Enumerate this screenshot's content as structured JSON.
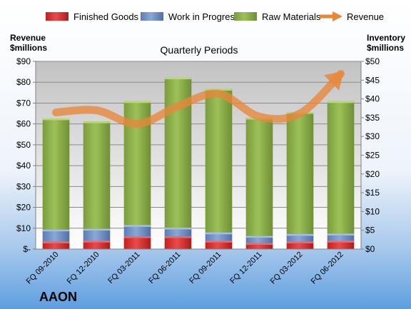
{
  "chart_data": {
    "type": "bar",
    "title": "Quarterly Periods",
    "company": "AAON",
    "left_axis_label_line1": "Revenue",
    "left_axis_label_line2": "$millions",
    "right_axis_label_line1": "Inventory",
    "right_axis_label_line2": "$millions",
    "categories": [
      "FQ 09-2010",
      "FQ 12-2010",
      "FQ 03-2011",
      "FQ 06-2011",
      "FQ 09-2011",
      "FQ 12-2011",
      "FQ 03-2012",
      "FQ 06-2012"
    ],
    "legend": [
      "Finished Goods",
      "Work in Progress",
      "Raw Materials",
      "Revenue"
    ],
    "legend_position": "top",
    "grid": true,
    "left_axis": {
      "ylim": [
        0,
        90
      ],
      "ticks": [
        0,
        10,
        20,
        30,
        40,
        50,
        60,
        70,
        80,
        90
      ],
      "tick_labels": [
        "$-",
        "$10",
        "$20",
        "$30",
        "$40",
        "$50",
        "$60",
        "$70",
        "$80",
        "$90"
      ]
    },
    "right_axis": {
      "ylim": [
        0,
        50
      ],
      "ticks": [
        0,
        5,
        10,
        15,
        20,
        25,
        30,
        35,
        40,
        45,
        50
      ],
      "tick_labels": [
        "$0",
        "$5",
        "$10",
        "$15",
        "$20",
        "$25",
        "$30",
        "$35",
        "$40",
        "$45",
        "$50"
      ]
    },
    "series": [
      {
        "name": "Finished Goods",
        "axis": "right",
        "kind": "stacked-bar",
        "color": "#d42a2a",
        "values": [
          2.0,
          2.2,
          3.4,
          3.4,
          2.2,
          1.6,
          2.0,
          2.2
        ]
      },
      {
        "name": "Work in Progress",
        "axis": "right",
        "kind": "stacked-bar",
        "color": "#6f8fc4",
        "values": [
          3.2,
          3.2,
          3.0,
          2.3,
          2.2,
          1.9,
          2.0,
          1.9
        ]
      },
      {
        "name": "Raw Materials",
        "axis": "right",
        "kind": "stacked-bar",
        "color": "#8cb04a",
        "values": [
          29.6,
          28.6,
          33.0,
          40.0,
          38.3,
          31.5,
          32.5,
          35.3
        ]
      },
      {
        "name": "Revenue",
        "axis": "left",
        "kind": "line",
        "color": "#e8873a",
        "values": [
          65.5,
          66.5,
          60.0,
          68.5,
          74.5,
          63.5,
          65.0,
          84.0
        ]
      }
    ]
  }
}
